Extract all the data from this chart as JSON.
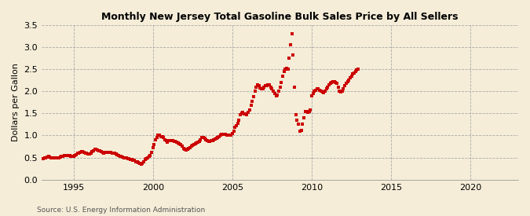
{
  "title": "Monthly New Jersey Total Gasoline Bulk Sales Price by All Sellers",
  "ylabel": "Dollars per Gallon",
  "source": "Source: U.S. Energy Information Administration",
  "xlim": [
    1993.0,
    2023.0
  ],
  "ylim": [
    0.0,
    3.5
  ],
  "xticks": [
    1995,
    2000,
    2005,
    2010,
    2015,
    2020
  ],
  "yticks": [
    0.0,
    0.5,
    1.0,
    1.5,
    2.0,
    2.5,
    3.0,
    3.5
  ],
  "background_color": "#F5EDD8",
  "marker_color": "#CC0000",
  "marker": "s",
  "marker_size": 3.5,
  "data": [
    [
      1993.0,
      0.47
    ],
    [
      1993.083,
      0.48
    ],
    [
      1993.167,
      0.5
    ],
    [
      1993.25,
      0.5
    ],
    [
      1993.333,
      0.51
    ],
    [
      1993.417,
      0.52
    ],
    [
      1993.5,
      0.51
    ],
    [
      1993.583,
      0.5
    ],
    [
      1993.667,
      0.5
    ],
    [
      1993.75,
      0.49
    ],
    [
      1993.833,
      0.49
    ],
    [
      1993.917,
      0.49
    ],
    [
      1994.0,
      0.49
    ],
    [
      1994.083,
      0.5
    ],
    [
      1994.167,
      0.51
    ],
    [
      1994.25,
      0.52
    ],
    [
      1994.333,
      0.53
    ],
    [
      1994.417,
      0.54
    ],
    [
      1994.5,
      0.55
    ],
    [
      1994.583,
      0.55
    ],
    [
      1994.667,
      0.55
    ],
    [
      1994.75,
      0.54
    ],
    [
      1994.833,
      0.53
    ],
    [
      1994.917,
      0.52
    ],
    [
      1995.0,
      0.52
    ],
    [
      1995.083,
      0.55
    ],
    [
      1995.167,
      0.57
    ],
    [
      1995.25,
      0.59
    ],
    [
      1995.333,
      0.6
    ],
    [
      1995.417,
      0.62
    ],
    [
      1995.5,
      0.63
    ],
    [
      1995.583,
      0.63
    ],
    [
      1995.667,
      0.62
    ],
    [
      1995.75,
      0.6
    ],
    [
      1995.833,
      0.59
    ],
    [
      1995.917,
      0.58
    ],
    [
      1996.0,
      0.58
    ],
    [
      1996.083,
      0.6
    ],
    [
      1996.167,
      0.64
    ],
    [
      1996.25,
      0.66
    ],
    [
      1996.333,
      0.68
    ],
    [
      1996.417,
      0.68
    ],
    [
      1996.5,
      0.67
    ],
    [
      1996.583,
      0.66
    ],
    [
      1996.667,
      0.65
    ],
    [
      1996.75,
      0.63
    ],
    [
      1996.833,
      0.61
    ],
    [
      1996.917,
      0.6
    ],
    [
      1997.0,
      0.61
    ],
    [
      1997.083,
      0.61
    ],
    [
      1997.167,
      0.61
    ],
    [
      1997.25,
      0.61
    ],
    [
      1997.333,
      0.61
    ],
    [
      1997.417,
      0.6
    ],
    [
      1997.5,
      0.59
    ],
    [
      1997.583,
      0.59
    ],
    [
      1997.667,
      0.58
    ],
    [
      1997.75,
      0.57
    ],
    [
      1997.833,
      0.55
    ],
    [
      1997.917,
      0.53
    ],
    [
      1998.0,
      0.52
    ],
    [
      1998.083,
      0.51
    ],
    [
      1998.167,
      0.5
    ],
    [
      1998.25,
      0.5
    ],
    [
      1998.333,
      0.49
    ],
    [
      1998.417,
      0.48
    ],
    [
      1998.5,
      0.47
    ],
    [
      1998.583,
      0.46
    ],
    [
      1998.667,
      0.45
    ],
    [
      1998.75,
      0.44
    ],
    [
      1998.833,
      0.43
    ],
    [
      1998.917,
      0.41
    ],
    [
      1999.0,
      0.4
    ],
    [
      1999.083,
      0.38
    ],
    [
      1999.167,
      0.36
    ],
    [
      1999.25,
      0.35
    ],
    [
      1999.333,
      0.36
    ],
    [
      1999.417,
      0.4
    ],
    [
      1999.5,
      0.45
    ],
    [
      1999.583,
      0.48
    ],
    [
      1999.667,
      0.5
    ],
    [
      1999.75,
      0.52
    ],
    [
      1999.833,
      0.55
    ],
    [
      1999.917,
      0.62
    ],
    [
      2000.0,
      0.72
    ],
    [
      2000.083,
      0.8
    ],
    [
      2000.167,
      0.9
    ],
    [
      2000.25,
      0.95
    ],
    [
      2000.333,
      1.0
    ],
    [
      2000.417,
      1.0
    ],
    [
      2000.5,
      0.98
    ],
    [
      2000.583,
      0.97
    ],
    [
      2000.667,
      0.95
    ],
    [
      2000.75,
      0.9
    ],
    [
      2000.833,
      0.88
    ],
    [
      2000.917,
      0.85
    ],
    [
      2001.0,
      0.88
    ],
    [
      2001.083,
      0.88
    ],
    [
      2001.167,
      0.88
    ],
    [
      2001.25,
      0.88
    ],
    [
      2001.333,
      0.87
    ],
    [
      2001.417,
      0.86
    ],
    [
      2001.5,
      0.85
    ],
    [
      2001.583,
      0.83
    ],
    [
      2001.667,
      0.82
    ],
    [
      2001.75,
      0.8
    ],
    [
      2001.833,
      0.75
    ],
    [
      2001.917,
      0.7
    ],
    [
      2002.0,
      0.68
    ],
    [
      2002.083,
      0.67
    ],
    [
      2002.167,
      0.68
    ],
    [
      2002.25,
      0.7
    ],
    [
      2002.333,
      0.73
    ],
    [
      2002.417,
      0.76
    ],
    [
      2002.5,
      0.78
    ],
    [
      2002.583,
      0.8
    ],
    [
      2002.667,
      0.82
    ],
    [
      2002.75,
      0.83
    ],
    [
      2002.833,
      0.85
    ],
    [
      2002.917,
      0.87
    ],
    [
      2003.0,
      0.9
    ],
    [
      2003.083,
      0.95
    ],
    [
      2003.167,
      0.95
    ],
    [
      2003.25,
      0.93
    ],
    [
      2003.333,
      0.9
    ],
    [
      2003.417,
      0.88
    ],
    [
      2003.5,
      0.87
    ],
    [
      2003.583,
      0.87
    ],
    [
      2003.667,
      0.88
    ],
    [
      2003.75,
      0.89
    ],
    [
      2003.833,
      0.9
    ],
    [
      2003.917,
      0.92
    ],
    [
      2004.0,
      0.94
    ],
    [
      2004.083,
      0.96
    ],
    [
      2004.167,
      0.98
    ],
    [
      2004.25,
      1.0
    ],
    [
      2004.333,
      1.02
    ],
    [
      2004.417,
      1.03
    ],
    [
      2004.5,
      1.02
    ],
    [
      2004.583,
      1.02
    ],
    [
      2004.667,
      1.01
    ],
    [
      2004.75,
      1.0
    ],
    [
      2004.833,
      1.0
    ],
    [
      2004.917,
      1.0
    ],
    [
      2005.0,
      1.05
    ],
    [
      2005.083,
      1.1
    ],
    [
      2005.167,
      1.18
    ],
    [
      2005.25,
      1.22
    ],
    [
      2005.333,
      1.28
    ],
    [
      2005.417,
      1.35
    ],
    [
      2005.5,
      1.47
    ],
    [
      2005.583,
      1.5
    ],
    [
      2005.667,
      1.52
    ],
    [
      2005.75,
      1.48
    ],
    [
      2005.833,
      1.48
    ],
    [
      2005.917,
      1.47
    ],
    [
      2006.0,
      1.52
    ],
    [
      2006.083,
      1.58
    ],
    [
      2006.167,
      1.68
    ],
    [
      2006.25,
      1.78
    ],
    [
      2006.333,
      1.88
    ],
    [
      2006.417,
      2.0
    ],
    [
      2006.5,
      2.1
    ],
    [
      2006.583,
      2.15
    ],
    [
      2006.667,
      2.12
    ],
    [
      2006.75,
      2.08
    ],
    [
      2006.833,
      2.05
    ],
    [
      2006.917,
      2.05
    ],
    [
      2007.0,
      2.1
    ],
    [
      2007.083,
      2.12
    ],
    [
      2007.167,
      2.13
    ],
    [
      2007.25,
      2.15
    ],
    [
      2007.333,
      2.15
    ],
    [
      2007.417,
      2.1
    ],
    [
      2007.5,
      2.05
    ],
    [
      2007.583,
      2.0
    ],
    [
      2007.667,
      1.95
    ],
    [
      2007.75,
      1.9
    ],
    [
      2007.833,
      1.92
    ],
    [
      2007.917,
      2.0
    ],
    [
      2008.0,
      2.1
    ],
    [
      2008.083,
      2.2
    ],
    [
      2008.167,
      2.35
    ],
    [
      2008.25,
      2.45
    ],
    [
      2008.333,
      2.5
    ],
    [
      2008.417,
      2.52
    ],
    [
      2008.5,
      2.5
    ],
    [
      2008.583,
      2.75
    ],
    [
      2008.667,
      3.05
    ],
    [
      2008.75,
      3.3
    ],
    [
      2008.833,
      2.82
    ],
    [
      2008.917,
      2.1
    ],
    [
      2009.0,
      1.47
    ],
    [
      2009.083,
      1.35
    ],
    [
      2009.167,
      1.25
    ],
    [
      2009.25,
      1.1
    ],
    [
      2009.333,
      1.12
    ],
    [
      2009.417,
      1.25
    ],
    [
      2009.5,
      1.4
    ],
    [
      2009.583,
      1.55
    ],
    [
      2009.667,
      1.55
    ],
    [
      2009.75,
      1.52
    ],
    [
      2009.833,
      1.55
    ],
    [
      2009.917,
      1.58
    ],
    [
      2010.0,
      1.9
    ],
    [
      2010.083,
      1.95
    ],
    [
      2010.167,
      2.0
    ],
    [
      2010.25,
      2.03
    ],
    [
      2010.333,
      2.05
    ],
    [
      2010.417,
      2.05
    ],
    [
      2010.5,
      2.03
    ],
    [
      2010.583,
      2.0
    ],
    [
      2010.667,
      1.98
    ],
    [
      2010.75,
      1.97
    ],
    [
      2010.833,
      2.0
    ],
    [
      2010.917,
      2.05
    ],
    [
      2011.0,
      2.1
    ],
    [
      2011.083,
      2.15
    ],
    [
      2011.167,
      2.18
    ],
    [
      2011.25,
      2.2
    ],
    [
      2011.333,
      2.22
    ],
    [
      2011.417,
      2.22
    ],
    [
      2011.5,
      2.2
    ],
    [
      2011.583,
      2.18
    ],
    [
      2011.667,
      2.1
    ],
    [
      2011.75,
      2.0
    ],
    [
      2011.833,
      1.98
    ],
    [
      2011.917,
      2.0
    ],
    [
      2012.0,
      2.05
    ],
    [
      2012.083,
      2.12
    ],
    [
      2012.167,
      2.18
    ],
    [
      2012.25,
      2.22
    ],
    [
      2012.333,
      2.25
    ],
    [
      2012.417,
      2.3
    ],
    [
      2012.5,
      2.35
    ],
    [
      2012.583,
      2.4
    ],
    [
      2012.667,
      2.42
    ],
    [
      2012.75,
      2.45
    ],
    [
      2012.833,
      2.48
    ],
    [
      2012.917,
      2.5
    ]
  ]
}
